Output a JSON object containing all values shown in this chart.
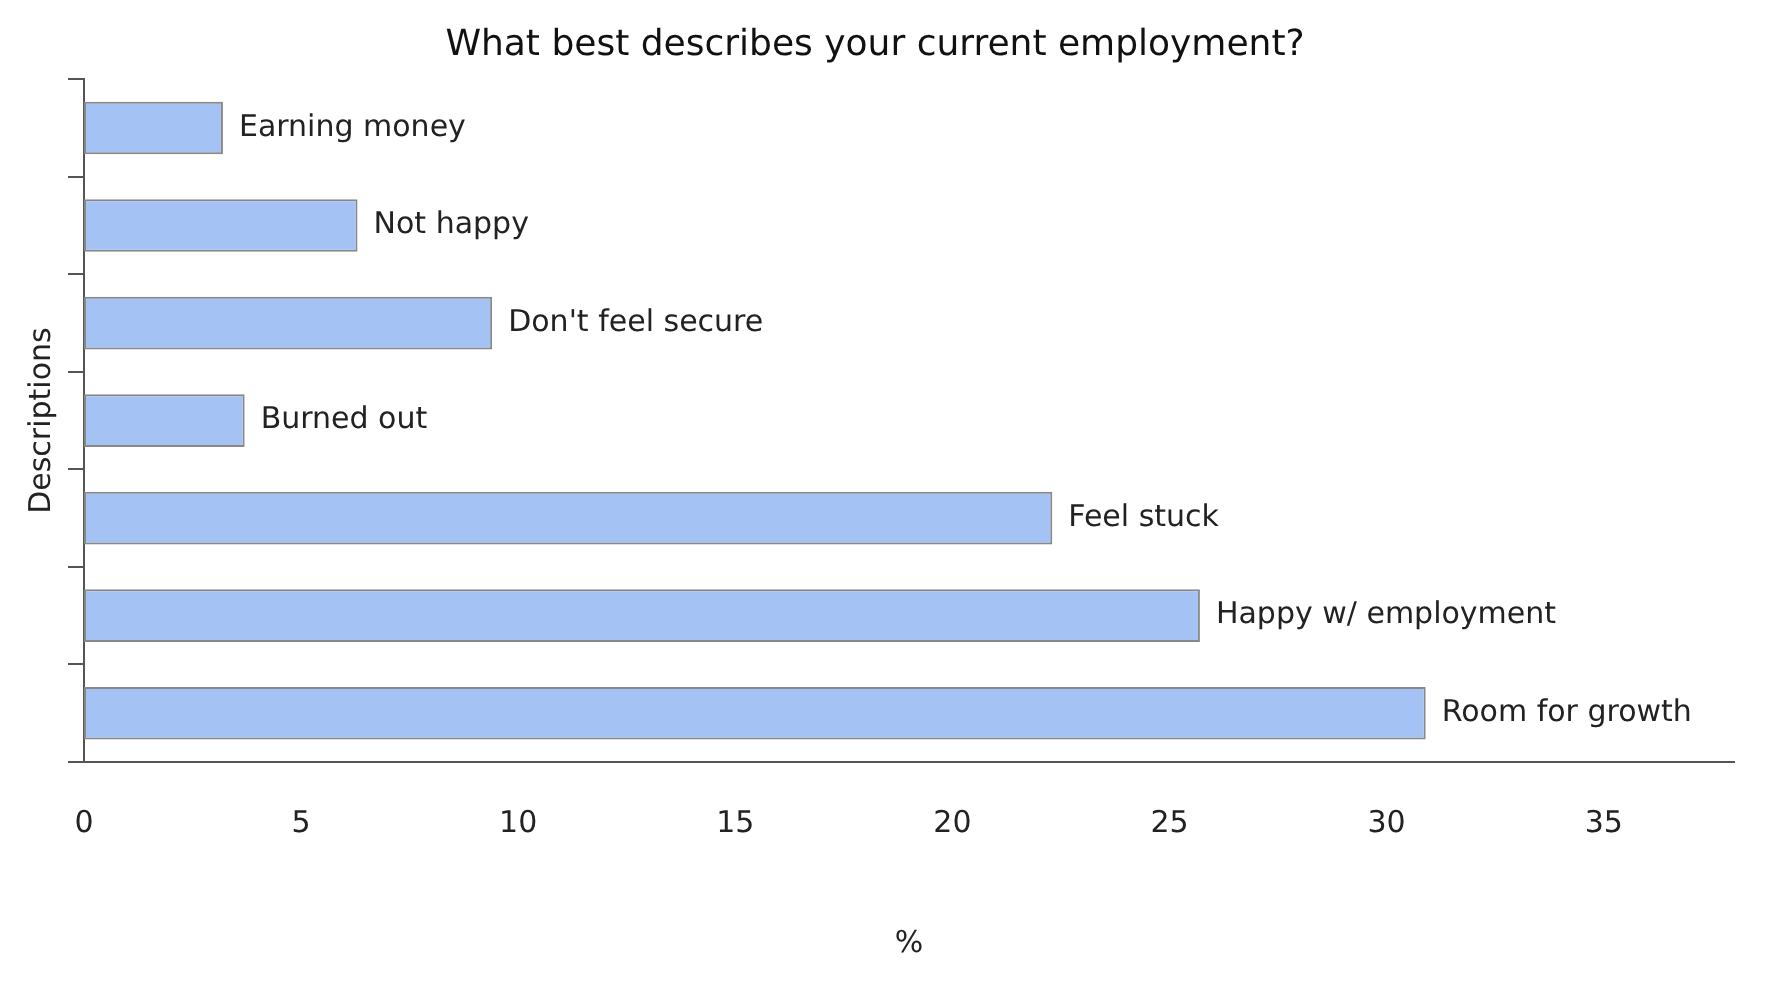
{
  "chart_data": {
    "type": "bar",
    "orientation": "horizontal",
    "title": "What best describes your current employment?",
    "xlabel": "%",
    "ylabel": "Descriptions",
    "categories": [
      "Earning money",
      "Not happy",
      "Don't feel secure",
      "Burned out",
      "Feel stuck",
      "Happy w/ employment",
      "Room for growth"
    ],
    "values": [
      3.2,
      6.3,
      9.4,
      3.7,
      22.3,
      25.7,
      30.9
    ],
    "color": "#a4c2f4",
    "xlim": [
      0,
      38
    ],
    "xticks": [
      0,
      5,
      10,
      15,
      20,
      25,
      30,
      35
    ],
    "legend": false,
    "grid": false
  }
}
